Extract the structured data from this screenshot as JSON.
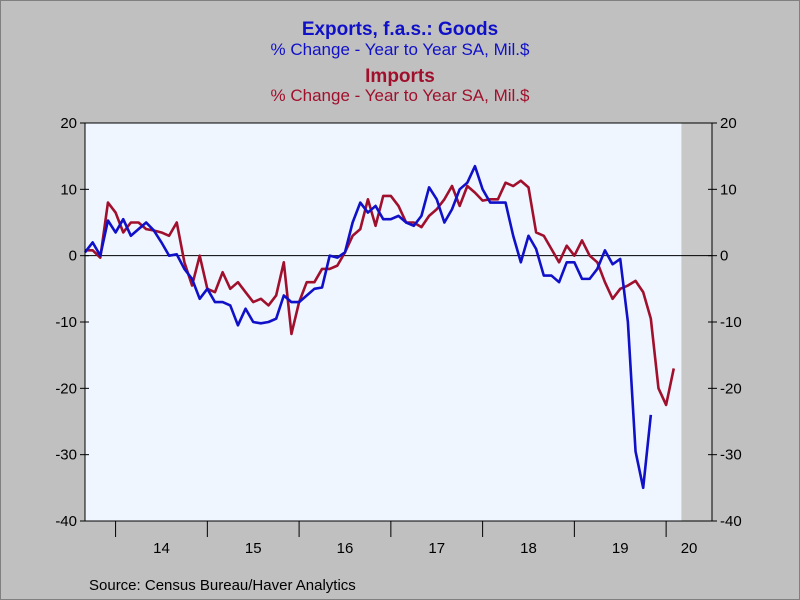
{
  "chart_data": {
    "type": "line",
    "titles": [
      {
        "title": "Exports, f.a.s.: Goods",
        "subtitle": "% Change - Year to Year    SA, Mil.$",
        "color": "#1010c8"
      },
      {
        "title": "Imports",
        "subtitle": "% Change - Year to Year    SA, Mil.$",
        "color": "#a0102c"
      }
    ],
    "source": "Source:  Census Bureau/Haver Analytics",
    "x_start": "2013-09",
    "x_end": "2020-07",
    "x_ticks": [
      {
        "label": "14",
        "year": 2014
      },
      {
        "label": "15",
        "year": 2015
      },
      {
        "label": "16",
        "year": 2016
      },
      {
        "label": "17",
        "year": 2017
      },
      {
        "label": "18",
        "year": 2018
      },
      {
        "label": "19",
        "year": 2019
      },
      {
        "label": "20",
        "year": 2020
      }
    ],
    "ylim": [
      -40,
      20
    ],
    "y_ticks": [
      20,
      10,
      0,
      -10,
      -20,
      -30,
      -40
    ],
    "recession": {
      "start": "2020-03",
      "end": "2020-07"
    },
    "zero_line": true,
    "series": [
      {
        "name": "Exports, f.a.s.: Goods",
        "color": "#1010c8",
        "start": "2013-09",
        "values": [
          0.5,
          2.0,
          0.0,
          5.3,
          3.5,
          5.5,
          3.0,
          4.0,
          5.0,
          3.8,
          2.0,
          0.0,
          0.2,
          -2.0,
          -3.5,
          -6.5,
          -5.0,
          -7.0,
          -7.0,
          -7.5,
          -10.5,
          -8.0,
          -10.0,
          -10.2,
          -10.0,
          -9.5,
          -6.0,
          -7.0,
          -7.0,
          -6.0,
          -5.0,
          -4.8,
          0.0,
          -0.3,
          0.5,
          5.0,
          8.0,
          6.5,
          7.5,
          5.5,
          5.5,
          6.0,
          5.0,
          4.5,
          6.0,
          10.3,
          8.5,
          5.0,
          7.0,
          10.0,
          11.0,
          13.5,
          10.0,
          8.0,
          8.0,
          8.0,
          3.0,
          -1.0,
          3.0,
          1.0,
          -3.0,
          -3.0,
          -4.0,
          -1.0,
          -1.0,
          -3.5,
          -3.5,
          -2.0,
          0.8,
          -1.3,
          -0.5,
          -10.0,
          -29.5,
          -35.0,
          -24.0
        ]
      },
      {
        "name": "Imports",
        "color": "#a0102c",
        "start": "2013-09",
        "values": [
          0.8,
          0.8,
          -0.3,
          8.0,
          6.5,
          3.5,
          5.0,
          5.0,
          4.0,
          3.8,
          3.5,
          3.0,
          5.0,
          -1.0,
          -4.5,
          0.0,
          -5.0,
          -5.5,
          -2.5,
          -5.0,
          -4.0,
          -5.5,
          -7.0,
          -6.5,
          -7.5,
          -6.0,
          -1.0,
          -11.8,
          -7.0,
          -4.0,
          -4.0,
          -2.0,
          -2.0,
          -1.5,
          0.5,
          3.0,
          4.0,
          8.5,
          4.5,
          9.0,
          9.0,
          7.5,
          5.0,
          5.0,
          4.3,
          6.0,
          7.0,
          8.5,
          10.5,
          7.5,
          10.5,
          9.5,
          8.3,
          8.5,
          8.5,
          11.0,
          10.5,
          11.3,
          10.3,
          3.5,
          3.0,
          1.0,
          -1.0,
          1.5,
          0.0,
          2.3,
          0.0,
          -1.0,
          -4.0,
          -6.5,
          -5.0,
          -4.5,
          -3.8,
          -5.5,
          -9.5,
          -20.0,
          -22.5,
          -17.0
        ]
      }
    ]
  }
}
